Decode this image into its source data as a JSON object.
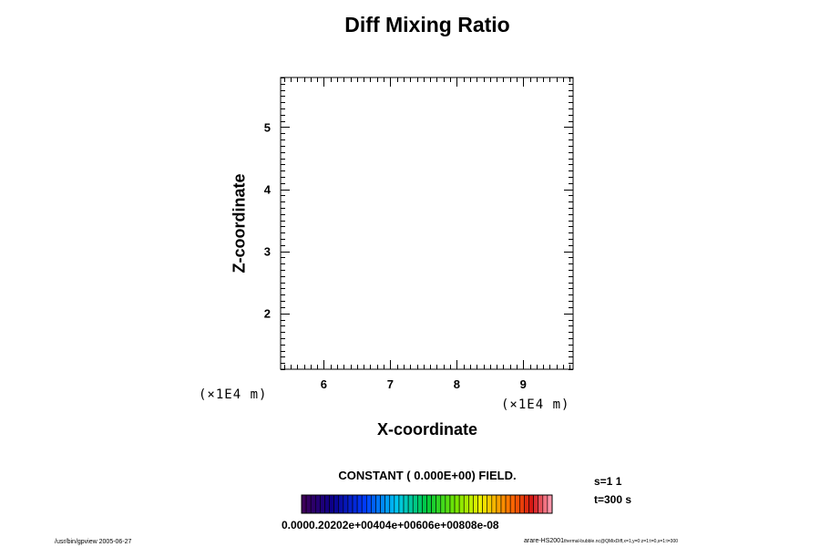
{
  "chart_data": {
    "type": "heatmap",
    "title": "Diff Mixing Ratio",
    "xlabel": "X-coordinate",
    "ylabel": "Z-coordinate",
    "x_unit": "(×1E4 m)",
    "y_unit": "(×1E4 m)",
    "xlim": [
      5.35,
      9.75
    ],
    "ylim": [
      1.1,
      5.8
    ],
    "x_ticks": [
      6,
      7,
      8,
      9
    ],
    "y_ticks": [
      2,
      3,
      4,
      5
    ],
    "x_minor_step": 0.1,
    "y_minor_step": 0.1,
    "field_note": "CONSTANT ( 0.000E+00) FIELD.",
    "field_value": 0.0,
    "colorbar": {
      "n_colors": 54,
      "tick_text": "0.0000.20202e+00404e+00606e+00808e-08"
    }
  },
  "info": {
    "s_label": "s=1 1",
    "t_label": "t=300 s"
  },
  "footer": {
    "left": "/usr/bin/gpview 2005-06-27",
    "right_main": "arare-HS2001",
    "right_small": "thermal-bubble.nc@QMixDiff,x=1,y=0:z=1:t=0,s=1:t=300"
  }
}
